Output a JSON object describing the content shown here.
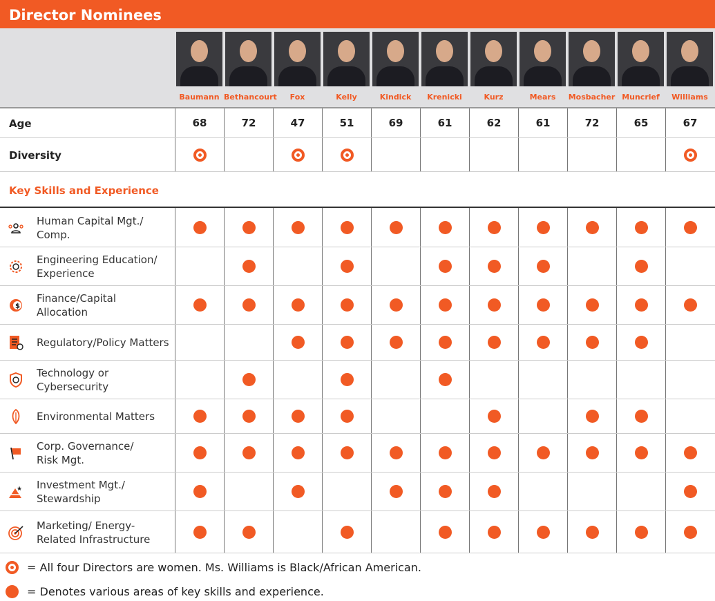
{
  "title": "Director Nominees",
  "accent": "#f15a24",
  "directors": [
    {
      "name": "Baumann",
      "age": "68",
      "diverse": true
    },
    {
      "name": "Bethancourt",
      "age": "72",
      "diverse": false
    },
    {
      "name": "Fox",
      "age": "47",
      "diverse": true
    },
    {
      "name": "Kelly",
      "age": "51",
      "diverse": true
    },
    {
      "name": "Kindick",
      "age": "69",
      "diverse": false
    },
    {
      "name": "Krenicki",
      "age": "61",
      "diverse": false
    },
    {
      "name": "Kurz",
      "age": "62",
      "diverse": false
    },
    {
      "name": "Mears",
      "age": "61",
      "diverse": false
    },
    {
      "name": "Mosbacher",
      "age": "72",
      "diverse": false
    },
    {
      "name": "Muncrief",
      "age": "65",
      "diverse": false
    },
    {
      "name": "Williams",
      "age": "67",
      "diverse": true
    }
  ],
  "age_label": "Age",
  "diversity_label": "Diversity",
  "skills_heading": "Key Skills and Experience",
  "skills": [
    {
      "label": "Human Capital Mgt./\nComp.",
      "icon": "people-icon",
      "marks": [
        1,
        1,
        1,
        1,
        1,
        1,
        1,
        1,
        1,
        1,
        1
      ]
    },
    {
      "label": "Engineering Education/\nExperience",
      "icon": "gear-wrench-icon",
      "marks": [
        0,
        1,
        0,
        1,
        0,
        1,
        1,
        1,
        0,
        1,
        0
      ]
    },
    {
      "label": "Finance/Capital\nAllocation",
      "icon": "dollar-coin-icon",
      "marks": [
        1,
        1,
        1,
        1,
        1,
        1,
        1,
        1,
        1,
        1,
        1
      ]
    },
    {
      "label": "Regulatory/Policy Matters",
      "icon": "checklist-icon",
      "marks": [
        0,
        0,
        1,
        1,
        1,
        1,
        1,
        1,
        1,
        1,
        0
      ]
    },
    {
      "label": "Technology or\nCybersecurity",
      "icon": "fingerprint-shield-icon",
      "marks": [
        0,
        1,
        0,
        1,
        0,
        1,
        0,
        0,
        0,
        0,
        0
      ]
    },
    {
      "label": "Environmental Matters",
      "icon": "leaf-icon",
      "marks": [
        1,
        1,
        1,
        1,
        0,
        0,
        1,
        0,
        1,
        1,
        0
      ]
    },
    {
      "label": "Corp. Governance/\nRisk Mgt.",
      "icon": "flag-icon",
      "marks": [
        1,
        1,
        1,
        1,
        1,
        1,
        1,
        1,
        1,
        1,
        1
      ]
    },
    {
      "label": "Investment Mgt./\nStewardship",
      "icon": "pyramid-star-icon",
      "marks": [
        1,
        0,
        1,
        0,
        1,
        1,
        1,
        0,
        0,
        0,
        1
      ]
    },
    {
      "label": "Marketing/ Energy-\nRelated Infrastructure",
      "icon": "target-arrow-icon",
      "marks": [
        1,
        1,
        0,
        1,
        0,
        1,
        1,
        1,
        1,
        1,
        1
      ]
    }
  ],
  "legend": {
    "diversity": "= All four Directors are women. Ms. Williams is Black/African American.",
    "skills": "= Denotes various areas of key skills and experience."
  }
}
